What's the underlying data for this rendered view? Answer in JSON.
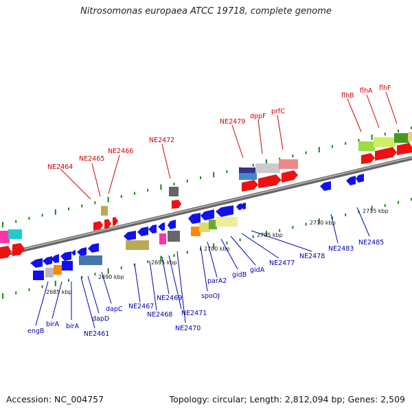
{
  "title": "Nitrosomonas europaea ATCC 19718, complete genome",
  "footer": {
    "accession": "Accession: NC_004757",
    "info": "Topology: circular; Length: 2,812,094 bp; Genes: 2,509"
  },
  "colors": {
    "forward_gene": "#ee1111",
    "reverse_gene": "#1111ee",
    "label_forward": "#cc0000",
    "label_reverse": "#0000aa",
    "backbone": "#888888"
  },
  "kbp_labels": [
    "2685 kbp",
    "2690 kbp",
    "2695 kbp",
    "2700 kbp",
    "2705 kbp",
    "2710 kbp",
    "2715 kbp"
  ],
  "gene_labels_top": [
    "NE2464",
    "NE2465",
    "NE2466",
    "NE2472",
    "NE2479",
    "dppF",
    "prfC",
    "flhB",
    "flhA",
    "flhF"
  ],
  "gene_labels_bottom": [
    "engB",
    "birA",
    "birA",
    "NE2461",
    "dapD",
    "dapC",
    "NE2467",
    "NE2468",
    "NE2469",
    "NE2471",
    "NE2470",
    "spoOJ",
    "parA2",
    "gidB",
    "gidA",
    "NE2477",
    "NE2478",
    "NE2483",
    "NE2485"
  ]
}
